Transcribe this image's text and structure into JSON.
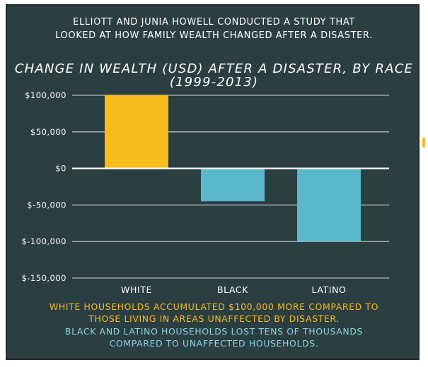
{
  "intro": {
    "line1": "ELLIOTT AND JUNIA HOWELL CONDUCTED A STUDY THAT",
    "line2": "LOOKED AT HOW FAMILY WEALTH CHANGED AFTER A DISASTER."
  },
  "chart_data": {
    "type": "bar",
    "title_line1": "CHANGE IN WEALTH (USD) AFTER A DISASTER, BY RACE",
    "title_line2": "(1999-2013)",
    "categories": [
      "WHITE",
      "BLACK",
      "LATINO"
    ],
    "values": [
      100000,
      -45000,
      -100000
    ],
    "bar_colors": [
      "#f8bc1c",
      "#58b8c9",
      "#58b8c9"
    ],
    "ylim": [
      -150000,
      100000
    ],
    "yticks": [
      100000,
      50000,
      0,
      -50000,
      -100000,
      -150000
    ],
    "ytick_labels": [
      "$100,000",
      "$50,000",
      "$0",
      "$-50,000",
      "$-100,000",
      "$-150,000"
    ],
    "grid": true
  },
  "notes": {
    "white_line1": "WHITE HOUSEHOLDS ACCUMULATED $100,000 MORE COMPARED TO",
    "white_line2": "THOSE LIVING IN AREAS UNAFFECTED BY DISASTER.",
    "other_line1": "BLACK AND LATINO HOUSEHOLDS LOST TENS OF THOUSANDS",
    "other_line2": "COMPARED TO UNAFFECTED HOUSEHOLDS."
  },
  "colors": {
    "background": "#2b3e42",
    "gridline": "#9aa5a8",
    "zero_line": "#ffffff",
    "white_bar": "#f8bc1c",
    "minority_bar": "#58b8c9",
    "white_note": "#f8bc1c",
    "minority_note": "#8fd3e0"
  }
}
